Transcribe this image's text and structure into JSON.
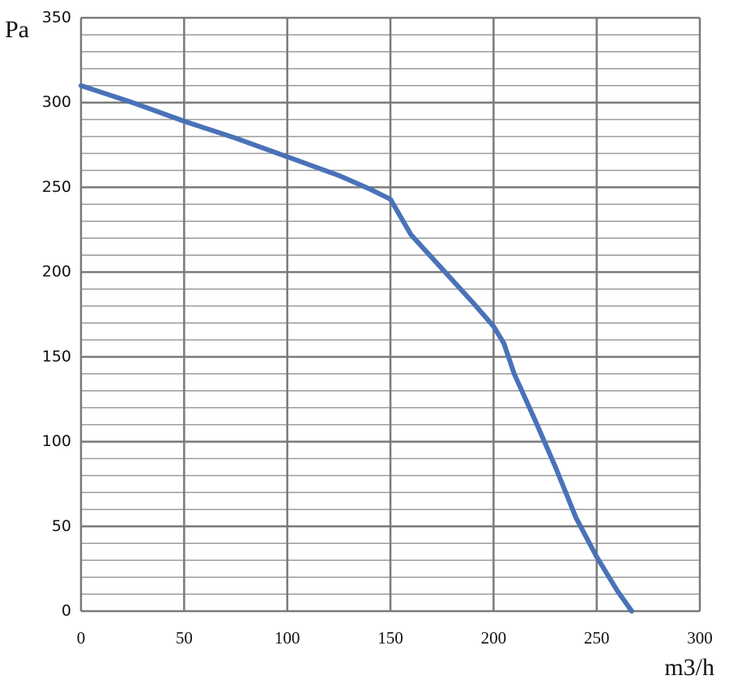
{
  "chart_data": {
    "type": "line",
    "x_label": "m3/h",
    "y_label": "Pa",
    "x": [
      0,
      25,
      50,
      75,
      100,
      125,
      140,
      150,
      160,
      175,
      190,
      200,
      205,
      210,
      220,
      230,
      240,
      250,
      260,
      267
    ],
    "series": [
      {
        "color": "#4a72b8",
        "values": [
          310,
          300,
          289,
          279,
          268,
          257,
          249,
          243,
          222,
          202,
          182,
          168,
          158,
          140,
          113,
          85,
          55,
          32,
          12,
          0
        ]
      }
    ],
    "xlim": [
      0,
      300
    ],
    "xticks": [
      0,
      50,
      100,
      150,
      200,
      250,
      300
    ],
    "ylim": [
      0,
      350
    ],
    "yticks": [
      0,
      50,
      100,
      150,
      200,
      250,
      300,
      350
    ],
    "yminorticks": [
      10,
      20,
      30,
      40,
      60,
      70,
      80,
      90,
      110,
      120,
      130,
      140,
      160,
      170,
      180,
      190,
      210,
      220,
      230,
      240,
      260,
      270,
      280,
      290,
      310,
      320,
      330,
      340
    ],
    "grid": true
  }
}
